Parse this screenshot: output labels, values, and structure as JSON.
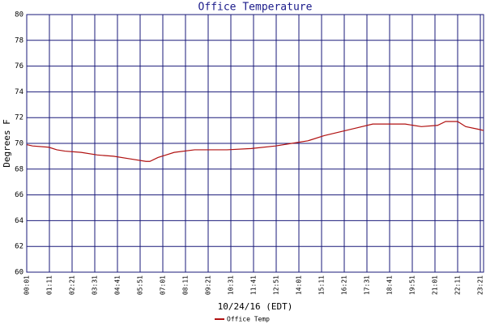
{
  "chart_data": {
    "type": "line",
    "title": "Office Temperature",
    "x_label": "10/24/16 (EDT)",
    "y_label": "Degrees F",
    "xlim": [
      1,
      1411
    ],
    "ylim": [
      60,
      80
    ],
    "xticks": [
      {
        "value": 1,
        "label": "00:01"
      },
      {
        "value": 71,
        "label": "01:11"
      },
      {
        "value": 141,
        "label": "02:21"
      },
      {
        "value": 211,
        "label": "03:31"
      },
      {
        "value": 281,
        "label": "04:41"
      },
      {
        "value": 351,
        "label": "05:51"
      },
      {
        "value": 421,
        "label": "07:01"
      },
      {
        "value": 491,
        "label": "08:11"
      },
      {
        "value": 561,
        "label": "09:21"
      },
      {
        "value": 631,
        "label": "10:31"
      },
      {
        "value": 701,
        "label": "11:41"
      },
      {
        "value": 771,
        "label": "12:51"
      },
      {
        "value": 841,
        "label": "14:01"
      },
      {
        "value": 911,
        "label": "15:11"
      },
      {
        "value": 981,
        "label": "16:21"
      },
      {
        "value": 1051,
        "label": "17:31"
      },
      {
        "value": 1121,
        "label": "18:41"
      },
      {
        "value": 1191,
        "label": "19:51"
      },
      {
        "value": 1261,
        "label": "21:01"
      },
      {
        "value": 1331,
        "label": "22:11"
      },
      {
        "value": 1401,
        "label": "23:21"
      }
    ],
    "yticks": [
      60,
      62,
      64,
      66,
      68,
      70,
      72,
      74,
      76,
      78,
      80
    ],
    "grid": true,
    "legend": "bottom",
    "series": [
      {
        "name": "Office Temp",
        "color": "#b01010",
        "x": [
          1,
          19,
          69,
          94,
          119,
          169,
          219,
          269,
          319,
          369,
          381,
          406,
          431,
          456,
          519,
          619,
          694,
          769,
          819,
          869,
          919,
          969,
          1019,
          1069,
          1169,
          1194,
          1219,
          1269,
          1294,
          1331,
          1356,
          1394,
          1411
        ],
        "values": [
          69.9,
          69.8,
          69.7,
          69.5,
          69.4,
          69.3,
          69.1,
          69.0,
          68.8,
          68.6,
          68.6,
          68.9,
          69.1,
          69.3,
          69.5,
          69.5,
          69.6,
          69.8,
          70.0,
          70.2,
          70.6,
          70.9,
          71.2,
          71.5,
          71.5,
          71.4,
          71.3,
          71.4,
          71.7,
          71.7,
          71.3,
          71.1,
          71.0
        ]
      }
    ]
  }
}
